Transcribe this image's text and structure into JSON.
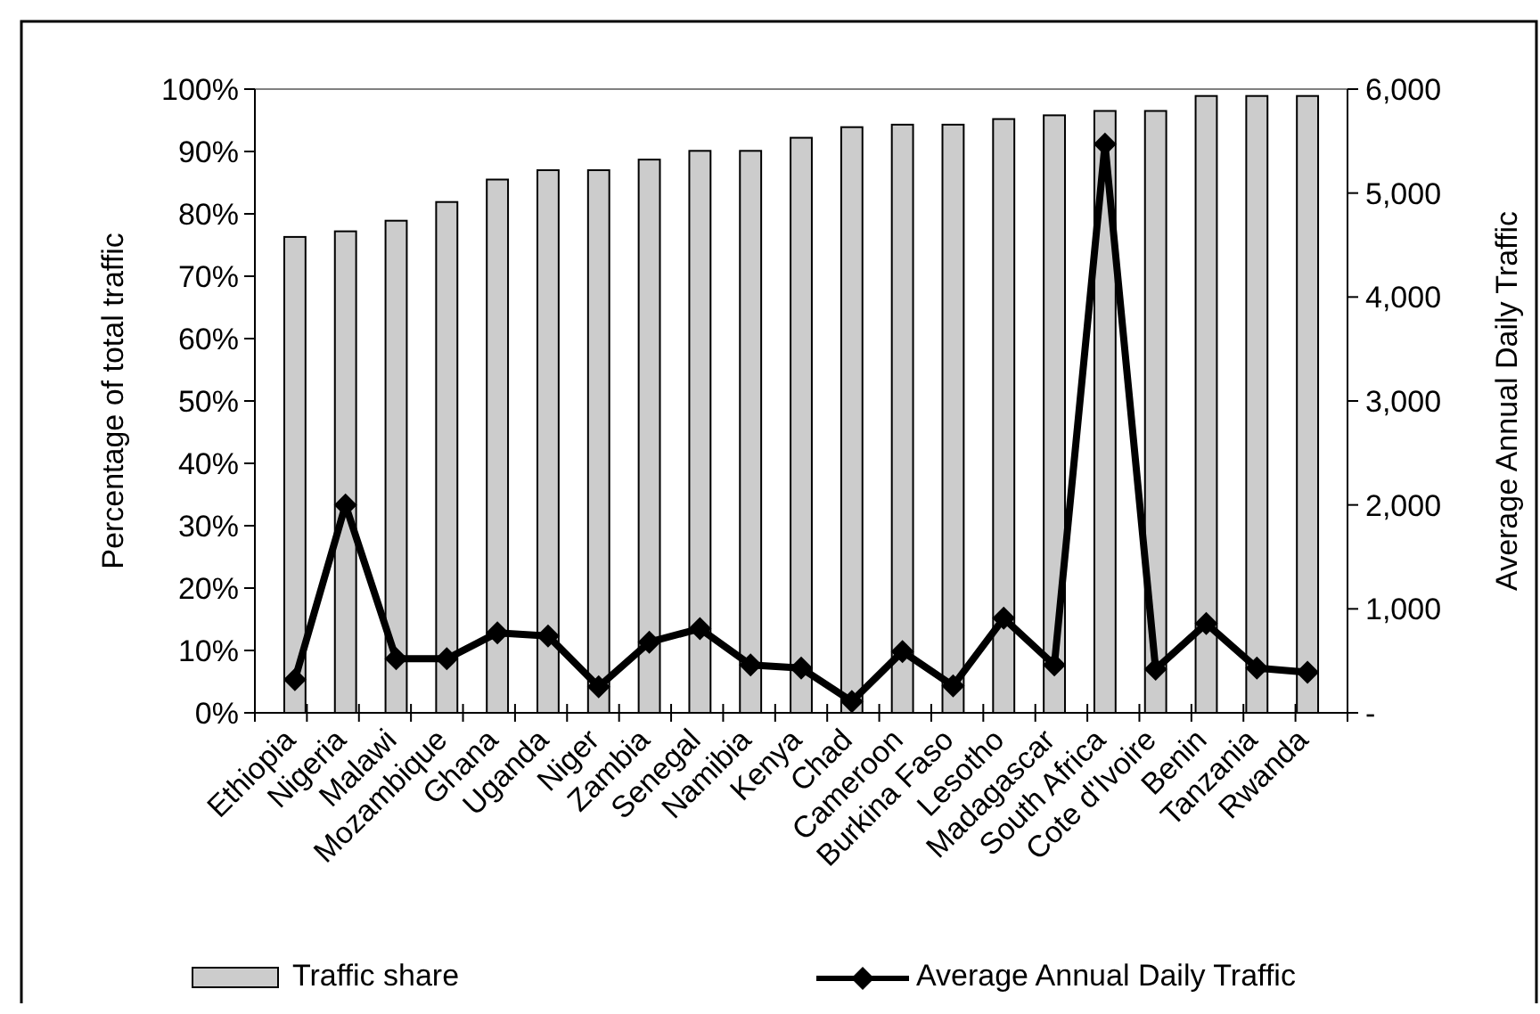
{
  "chart_data": {
    "type": "bar",
    "ylabel": "Percentage of total traffic",
    "y2label": "Average Annual Daily Traffic",
    "categories": [
      "Ethiopia",
      "Nigeria",
      "Malawi",
      "Mozambique",
      "Ghana",
      "Uganda",
      "Niger",
      "Zambia",
      "Senegal",
      "Namibia",
      "Kenya",
      "Chad",
      "Cameroon",
      "Burkina Faso",
      "Lesotho",
      "Madagascar",
      "South Africa",
      "Cote d'Ivoire",
      "Benin",
      "Tanzania",
      "Rwanda"
    ],
    "series": [
      {
        "name": "Traffic share",
        "color": "#cccccc",
        "values": [
          76.3,
          77.2,
          78.9,
          81.9,
          85.5,
          87.0,
          87.0,
          88.7,
          90.1,
          90.1,
          92.2,
          93.9,
          94.3,
          94.3,
          95.2,
          95.8,
          96.5,
          96.5,
          98.9,
          98.9,
          98.9
        ]
      },
      {
        "name": "Average Annual Daily Traffic",
        "type": "line",
        "axis": "y2",
        "color": "#000000",
        "marker": "diamond",
        "values": [
          320,
          2000,
          520,
          520,
          770,
          740,
          250,
          680,
          810,
          460,
          430,
          110,
          590,
          260,
          910,
          460,
          5470,
          420,
          860,
          430,
          390
        ]
      }
    ],
    "ylim": [
      0,
      100
    ],
    "yticks": [
      {
        "value": 0,
        "label": "0%"
      },
      {
        "value": 10,
        "label": "10%"
      },
      {
        "value": 20,
        "label": "20%"
      },
      {
        "value": 30,
        "label": "30%"
      },
      {
        "value": 40,
        "label": "40%"
      },
      {
        "value": 50,
        "label": "50%"
      },
      {
        "value": 60,
        "label": "60%"
      },
      {
        "value": 70,
        "label": "70%"
      },
      {
        "value": 80,
        "label": "80%"
      },
      {
        "value": 90,
        "label": "90%"
      },
      {
        "value": 100,
        "label": "100%"
      }
    ],
    "y2lim": [
      0,
      6000
    ],
    "y2ticks": [
      {
        "value": 0,
        "label": "-"
      },
      {
        "value": 1000,
        "label": "1,000"
      },
      {
        "value": 2000,
        "label": "2,000"
      },
      {
        "value": 3000,
        "label": "3,000"
      },
      {
        "value": 4000,
        "label": "4,000"
      },
      {
        "value": 5000,
        "label": "5,000"
      },
      {
        "value": 6000,
        "label": "6,000"
      }
    ],
    "grid": false,
    "legend": "bottom"
  }
}
